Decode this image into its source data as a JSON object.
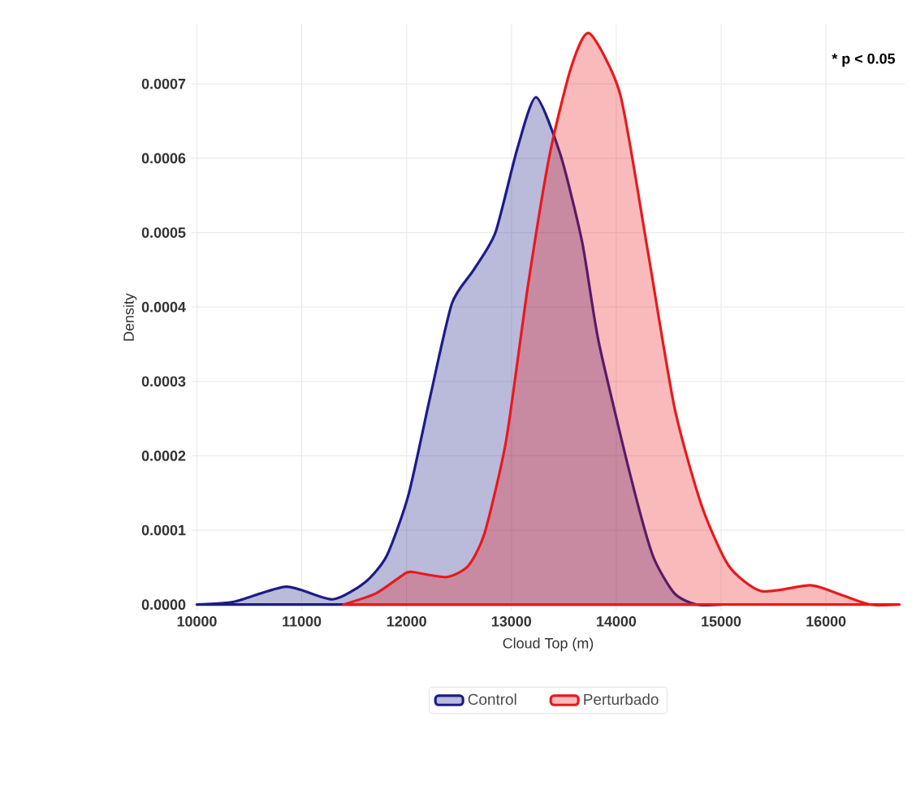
{
  "chart_data": {
    "type": "area",
    "xlabel": "Cloud Top (m)",
    "ylabel": "Density",
    "xlim": [
      9950,
      16750
    ],
    "ylim": [
      -8e-06,
      0.00078
    ],
    "xticks": [
      10000,
      11000,
      12000,
      13000,
      14000,
      15000,
      16000
    ],
    "yticks": [
      {
        "value": 0,
        "label": "0.0000"
      },
      {
        "value": 0.0001,
        "label": "0.0001"
      },
      {
        "value": 0.0002,
        "label": "0.0002"
      },
      {
        "value": 0.0003,
        "label": "0.0003"
      },
      {
        "value": 0.0004,
        "label": "0.0004"
      },
      {
        "value": 0.0005,
        "label": "0.0005"
      },
      {
        "value": 0.0006,
        "label": "0.0006"
      },
      {
        "value": 0.0007,
        "label": "0.0007"
      }
    ],
    "grid": true,
    "legend": "bottom",
    "annotations": [
      "* p < 0.05"
    ],
    "series": [
      {
        "name": "Control",
        "color": "#1c1c86",
        "x": [
          10000,
          10362,
          10854,
          11294,
          11604,
          11812,
          12019,
          12226,
          12433,
          12640,
          12847,
          13054,
          13235,
          13467,
          13675,
          13831,
          14141,
          14348,
          14555,
          14762,
          15000
        ],
        "values": [
          0,
          4e-06,
          2.4e-05,
          7e-06,
          3e-05,
          6.6e-05,
          0.000148,
          0.00028,
          0.000405,
          0.00045,
          0.0005,
          0.000612,
          0.000682,
          0.000605,
          0.000487,
          0.000354,
          0.00017,
          6.6e-05,
          1.5e-05,
          0,
          0
        ]
      },
      {
        "name": "Perturbado",
        "color": "#e8191e",
        "x": [
          11398,
          11708,
          11967,
          12045,
          12380,
          12588,
          12744,
          12950,
          13157,
          13365,
          13571,
          13742,
          14037,
          14296,
          14555,
          14814,
          15073,
          15384,
          15850,
          16108,
          16418,
          16700
        ],
        "values": [
          0,
          1.5e-05,
          4e-05,
          4.4e-05,
          3.7e-05,
          5.2e-05,
          9.6e-05,
          0.000221,
          0.000428,
          0.000605,
          0.000723,
          0.000768,
          0.000686,
          0.000479,
          0.000265,
          0.000133,
          5.2e-05,
          1.8e-05,
          2.6e-05,
          1.5e-05,
          0,
          0
        ]
      }
    ]
  }
}
